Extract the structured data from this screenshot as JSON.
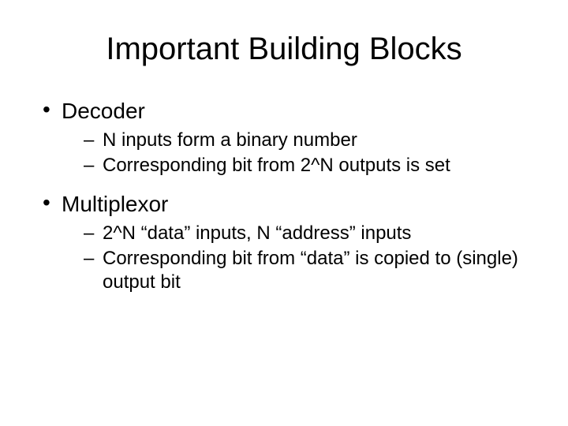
{
  "slide": {
    "background_color": "#ffffff",
    "text_color": "#000000",
    "title": {
      "text": "Important Building Blocks",
      "fontsize": 40,
      "align": "center"
    },
    "body_fontsize_level1": 28,
    "body_fontsize_level2": 24,
    "bullets": [
      {
        "label": "Decoder",
        "sub": [
          "N inputs form a binary number",
          "Corresponding bit from 2^N outputs is set"
        ]
      },
      {
        "label": "Multiplexor",
        "sub": [
          "2^N “data” inputs, N “address” inputs",
          "Corresponding bit from “data” is copied to (single) output bit"
        ]
      }
    ]
  }
}
